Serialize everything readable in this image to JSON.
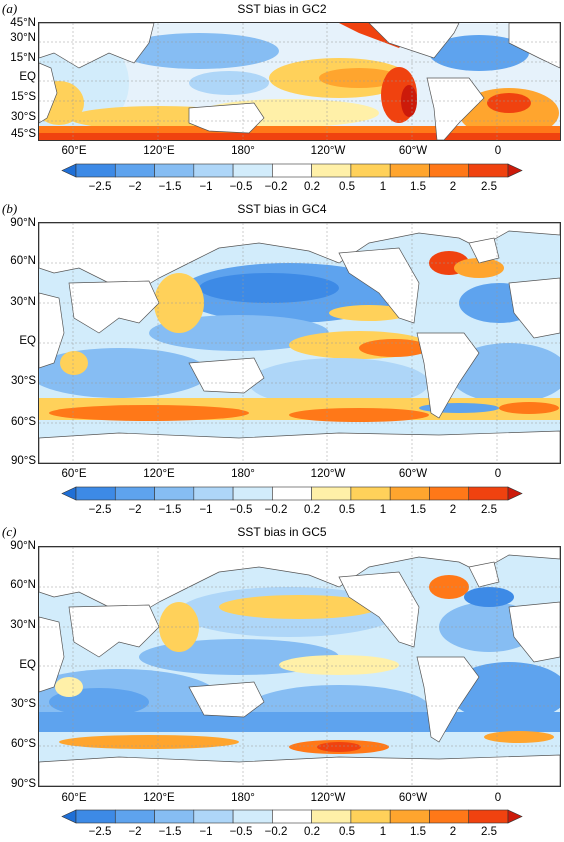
{
  "panels": [
    {
      "label": "(a)",
      "title": "SST bias in GC2",
      "lat_range": [
        -45,
        45
      ],
      "y_ticks": [
        "45°N",
        "30°N",
        "15°N",
        "EQ",
        "15°S",
        "30°S",
        "45°S"
      ]
    },
    {
      "label": "(b)",
      "title": "SST bias in GC4",
      "lat_range": [
        -90,
        90
      ],
      "y_ticks": [
        "90°N",
        "60°N",
        "30°N",
        "EQ",
        "30°S",
        "60°S",
        "90°S"
      ]
    },
    {
      "label": "(c)",
      "title": "SST bias in GC5",
      "lat_range": [
        -90,
        90
      ],
      "y_ticks": [
        "90°N",
        "60°N",
        "30°N",
        "EQ",
        "30°S",
        "60°S",
        "90°S"
      ]
    }
  ],
  "x_ticks": [
    "60°E",
    "120°E",
    "180°",
    "120°W",
    "60°W",
    "0"
  ],
  "colorbar": {
    "labels": [
      "−2.5",
      "−2",
      "−1.5",
      "−1",
      "−0.5",
      "−0.2",
      "0.2",
      "0.5",
      "1",
      "1.5",
      "2",
      "2.5"
    ],
    "colors": [
      "#1f6fd6",
      "#3d8ae6",
      "#5ea3ee",
      "#86bdf3",
      "#aed6f8",
      "#d2ecfb",
      "#ffffff",
      "#fff0a8",
      "#ffd15a",
      "#ffa52e",
      "#ff7818",
      "#f0420f",
      "#cc1a0a"
    ]
  }
}
